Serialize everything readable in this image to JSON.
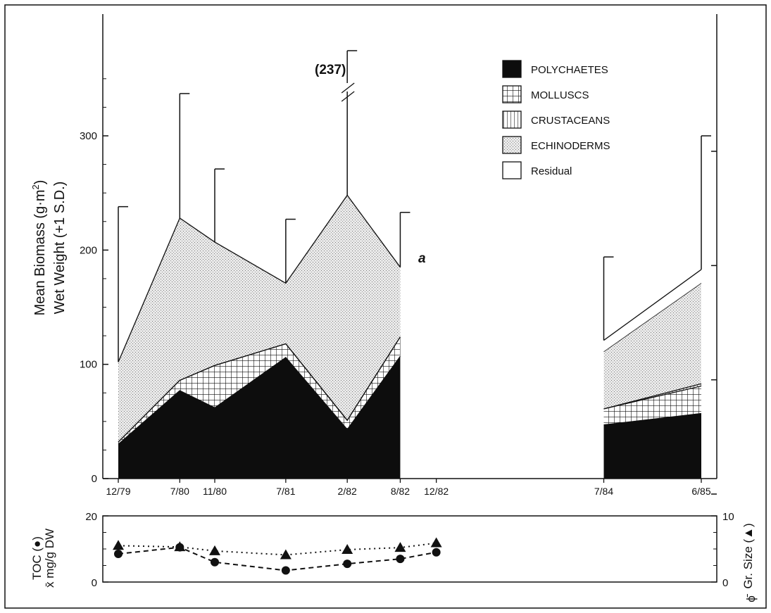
{
  "chart_data": [
    {
      "type": "area",
      "stacked": true,
      "ylabel": "Mean Biomass (g·m2) Wet Weight (+1 S.D.)",
      "ylabel_line1": "Mean Biomass (g·m",
      "ylabel_line1_sup": "2",
      "ylabel_line1_end": ")",
      "ylabel_line2": "Wet Weight (+1 S.D.)",
      "ylim": [
        0,
        360
      ],
      "yticks": [
        "0",
        "100",
        "200",
        "300"
      ],
      "x_tick_labels": [
        "12/79",
        "7/80",
        "11/80",
        "7/81",
        "2/82",
        "8/82",
        "12/82",
        "7/84",
        "6/85"
      ],
      "x_tick_positions": [
        1979.92,
        1980.5,
        1980.83,
        1981.5,
        1982.08,
        1982.58,
        1982.92,
        1984.5,
        1985.42
      ],
      "xlim": [
        1979.92,
        1985.42
      ],
      "grid": false,
      "legend_position": "top-right",
      "series": [
        {
          "name": "POLYCHAETES",
          "pattern": "solid-black",
          "x": [
            "12/79",
            "7/80",
            "11/80",
            "7/81",
            "2/82",
            "8/82",
            "7/84",
            "6/85"
          ],
          "values": [
            30,
            77,
            62,
            106,
            43,
            107,
            47,
            57
          ]
        },
        {
          "name": "MOLLUSCS",
          "pattern": "grid",
          "x": [
            "12/79",
            "7/80",
            "11/80",
            "7/81",
            "2/82",
            "8/82",
            "7/84",
            "6/85"
          ],
          "values": [
            2,
            9,
            37,
            12,
            8,
            17,
            14,
            24
          ]
        },
        {
          "name": "CRUSTACEANS",
          "pattern": "vertical-lines",
          "x": [
            "12/79",
            "7/80",
            "11/80",
            "7/81",
            "2/82",
            "8/82",
            "7/84",
            "6/85"
          ],
          "values": [
            0,
            0,
            0,
            0,
            0,
            0,
            0,
            2
          ]
        },
        {
          "name": "ECHINODERMS",
          "pattern": "dots",
          "x": [
            "12/79",
            "7/80",
            "11/80",
            "7/81",
            "2/82",
            "8/82",
            "7/84",
            "6/85"
          ],
          "values": [
            70,
            142,
            108,
            53,
            197,
            61,
            50,
            88
          ]
        },
        {
          "name": "Residual",
          "pattern": "white",
          "x": [
            "12/79",
            "7/80",
            "11/80",
            "7/81",
            "2/82",
            "8/82",
            "7/84",
            "6/85"
          ],
          "values": [
            0,
            0,
            0,
            0,
            0,
            0,
            10,
            12
          ]
        }
      ],
      "totals": {
        "x": [
          "12/79",
          "7/80",
          "11/80",
          "7/81",
          "2/82",
          "8/82",
          "7/84",
          "6/85"
        ],
        "values": [
          102,
          228,
          207,
          171,
          248,
          185,
          121,
          183
        ]
      },
      "error_bar_tops": {
        "x": [
          "12/79",
          "7/80",
          "11/80",
          "7/81",
          "2/82",
          "8/82",
          "7/84",
          "6/85"
        ],
        "values": [
          238,
          337,
          271,
          227,
          237,
          233,
          194,
          300
        ]
      },
      "annotations": [
        "(237)",
        "a"
      ]
    },
    {
      "type": "line",
      "ylabel_left": "TOC (●) x̄ mg/g DW",
      "ylabel_left_line1": "TOC (●)",
      "ylabel_left_line2": "x̄ mg/g DW",
      "ylabel_right": "Gr. Size (▲) ϕ̄",
      "ylabel_right_line1": "Gr. Size (▲)",
      "ylabel_right_line2": "ϕ̄",
      "ylim_left": [
        0,
        20
      ],
      "ylim_right": [
        0,
        10
      ],
      "yticks_left": [
        "0",
        "20"
      ],
      "yticks_right": [
        "0",
        "10"
      ],
      "series": [
        {
          "name": "TOC",
          "axis": "left",
          "marker": "circle",
          "line": "dashed",
          "x": [
            "12/79",
            "7/80",
            "11/80",
            "7/81",
            "2/82",
            "8/82",
            "12/82"
          ],
          "values": [
            8.5,
            10.5,
            6,
            3.5,
            5.5,
            7,
            9
          ]
        },
        {
          "name": "Gr. Size",
          "axis": "right",
          "marker": "triangle",
          "line": "dotted",
          "x": [
            "12/79",
            "7/80",
            "11/80",
            "7/81",
            "2/82",
            "8/82",
            "12/82"
          ],
          "values": [
            5.5,
            5.3,
            4.7,
            4.1,
            4.9,
            5.2,
            5.9
          ]
        }
      ]
    }
  ]
}
